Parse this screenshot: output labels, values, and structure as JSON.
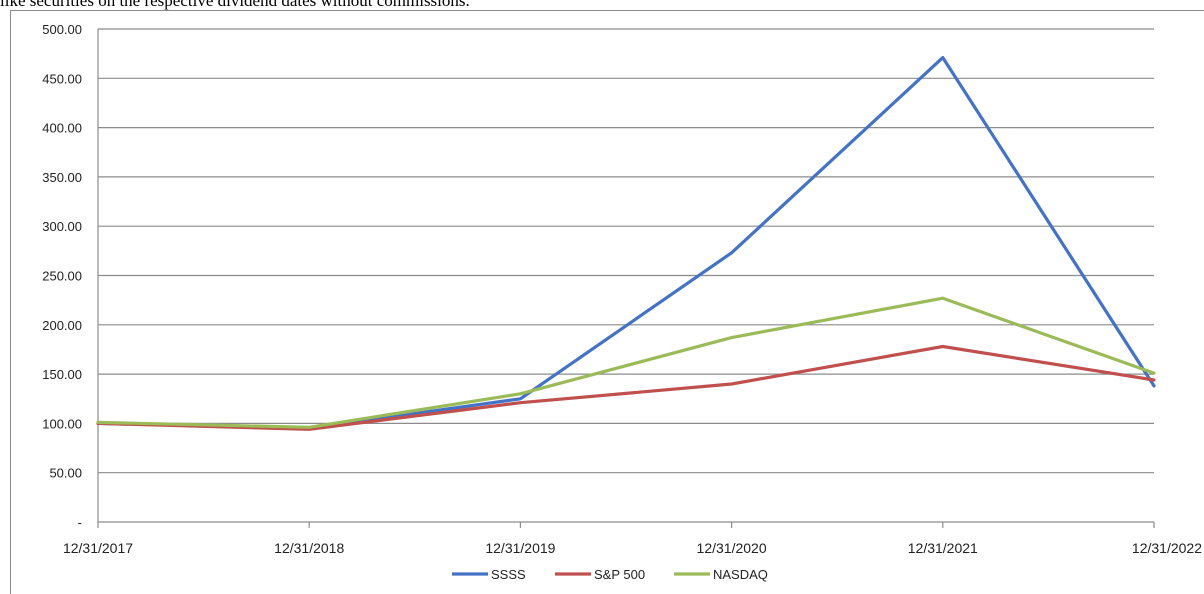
{
  "caption": "like securities on the respective dividend dates without commissions.",
  "chart_data": {
    "type": "line",
    "title": "",
    "xlabel": "",
    "ylabel": "",
    "categories": [
      "12/31/2017",
      "12/31/2018",
      "12/31/2019",
      "12/31/2020",
      "12/31/2021",
      "12/31/2022"
    ],
    "y_ticks": [
      "-",
      "50.00",
      "100.00",
      "150.00",
      "200.00",
      "250.00",
      "300.00",
      "350.00",
      "400.00",
      "450.00",
      "500.00"
    ],
    "ylim": [
      0,
      500
    ],
    "grid": true,
    "legend_position": "bottom",
    "series": [
      {
        "name": "SSSS",
        "color": "#4472c4",
        "values": [
          100,
          95,
          125,
          273,
          471,
          138
        ]
      },
      {
        "name": "S&P 500",
        "color": "#c0504d",
        "values": [
          100,
          94,
          121,
          140,
          178,
          144
        ]
      },
      {
        "name": "NASDAQ",
        "color": "#9bbb59",
        "values": [
          101,
          96,
          130,
          187,
          227,
          151
        ]
      }
    ]
  }
}
